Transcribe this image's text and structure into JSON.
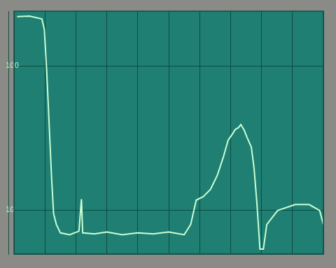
{
  "chart_data": {
    "type": "line",
    "x": [
      0.1,
      0.5,
      0.9,
      0.98,
      1.06,
      1.14,
      1.22,
      1.28,
      1.37,
      1.5,
      1.8,
      2.1,
      2.18,
      2.22,
      2.6,
      3.0,
      3.5,
      4.0,
      4.5,
      5.0,
      5.5,
      5.71,
      5.89,
      6.12,
      6.35,
      6.57,
      6.76,
      6.92,
      7.08,
      7.15,
      7.26,
      7.33,
      7.44,
      7.53,
      7.67,
      7.76,
      7.85,
      7.95,
      8.06,
      8.17,
      8.52,
      9.09,
      9.54,
      9.88,
      10
    ],
    "values": [
      220,
      222,
      212,
      180,
      90,
      38,
      16,
      9.5,
      8,
      7,
      6.8,
      7.2,
      12,
      7,
      6.9,
      7.1,
      6.8,
      7,
      6.9,
      7.1,
      6.8,
      8,
      11.8,
      12.5,
      14,
      17.5,
      23.2,
      30.7,
      34.4,
      36.4,
      37.6,
      39.4,
      36,
      32.2,
      27.5,
      19.6,
      11.3,
      5.4,
      5.4,
      8,
      10,
      11,
      11,
      10,
      8
    ],
    "color": "#c8ffd6",
    "xlim": [
      0,
      10
    ],
    "xticks": [
      0,
      1,
      2,
      3,
      4,
      5,
      6,
      7,
      8,
      9,
      10
    ],
    "ylim": [
      5,
      240
    ],
    "yticks": [
      10,
      100
    ],
    "log": "y",
    "grid": true,
    "tick_labels": "y"
  }
}
